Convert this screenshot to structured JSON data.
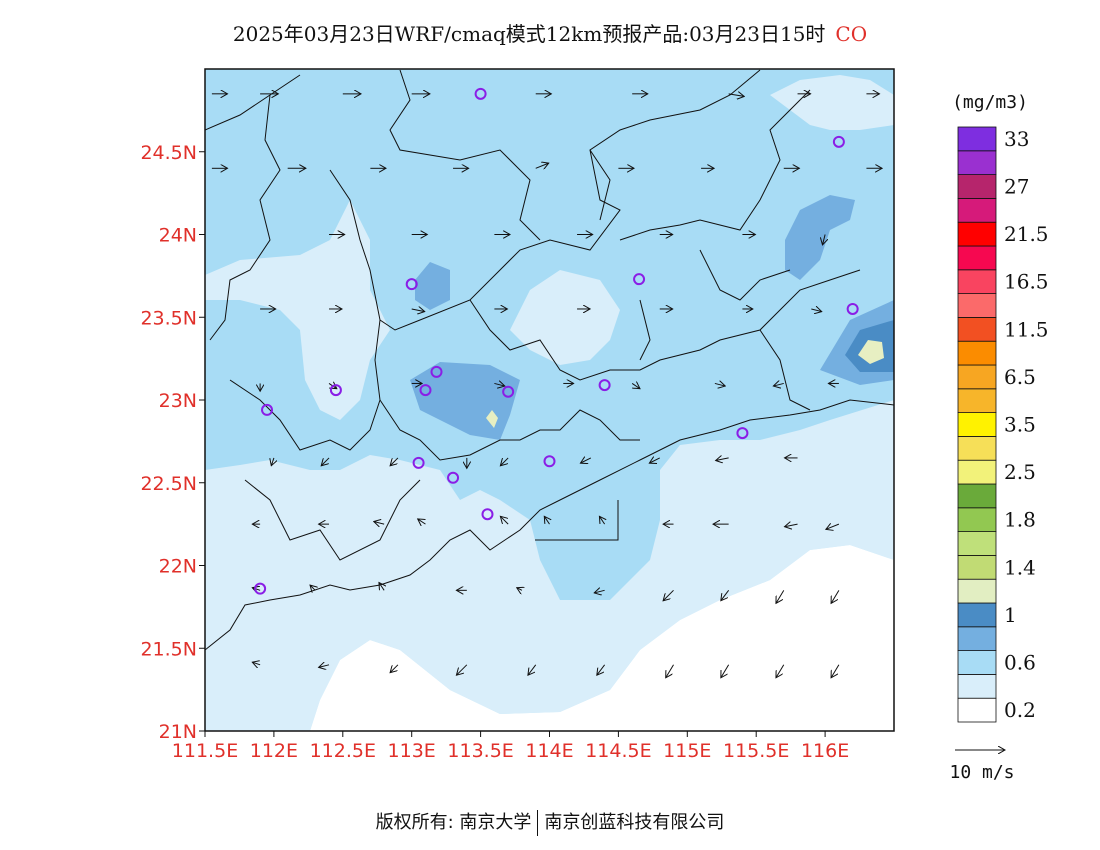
{
  "title": {
    "main": "2025年03月23日WRF/cmaq模式12km预报产品:03月23日15时",
    "species": "CO"
  },
  "map": {
    "lon_min": 111.5,
    "lon_max": 116.5,
    "lat_min": 21.0,
    "lat_max": 25.0,
    "x_ticks": [
      "111.5E",
      "112E",
      "112.5E",
      "113E",
      "113.5E",
      "114E",
      "114.5E",
      "115E",
      "115.5E",
      "116E"
    ],
    "x_tick_values": [
      111.5,
      112.0,
      112.5,
      113.0,
      113.5,
      114.0,
      114.5,
      115.0,
      115.5,
      116.0
    ],
    "y_ticks": [
      "21N",
      "21.5N",
      "22N",
      "22.5N",
      "23N",
      "23.5N",
      "24N",
      "24.5N"
    ],
    "y_tick_values": [
      21.0,
      21.5,
      22.0,
      22.5,
      23.0,
      23.5,
      24.0,
      24.5
    ],
    "fill_colors": {
      "level_0_2": "#d9eefa",
      "level_0_6": "#a8dcf5",
      "level_0_8": "#74afe0",
      "level_1": "#4a8cc5",
      "level_1_4": "#e7efc2"
    },
    "monitoring_sites": [
      {
        "lon": 113.5,
        "lat": 24.85
      },
      {
        "lon": 116.1,
        "lat": 24.56
      },
      {
        "lon": 113.0,
        "lat": 23.7
      },
      {
        "lon": 114.65,
        "lat": 23.73
      },
      {
        "lon": 116.2,
        "lat": 23.55
      },
      {
        "lon": 112.45,
        "lat": 23.06
      },
      {
        "lon": 113.1,
        "lat": 23.06
      },
      {
        "lon": 113.18,
        "lat": 23.17
      },
      {
        "lon": 113.7,
        "lat": 23.05
      },
      {
        "lon": 114.4,
        "lat": 23.09
      },
      {
        "lon": 111.95,
        "lat": 22.94
      },
      {
        "lon": 115.4,
        "lat": 22.8
      },
      {
        "lon": 113.05,
        "lat": 22.62
      },
      {
        "lon": 113.3,
        "lat": 22.53
      },
      {
        "lon": 114.0,
        "lat": 22.63
      },
      {
        "lon": 113.55,
        "lat": 22.31
      },
      {
        "lon": 111.9,
        "lat": 21.86
      }
    ],
    "wind_vectors": [
      {
        "lon": 111.55,
        "lat": 24.85,
        "u": 6,
        "v": 0
      },
      {
        "lon": 111.9,
        "lat": 24.85,
        "u": 7,
        "v": 0
      },
      {
        "lon": 112.5,
        "lat": 24.85,
        "u": 7,
        "v": 0
      },
      {
        "lon": 113.0,
        "lat": 24.85,
        "u": 7,
        "v": 0
      },
      {
        "lon": 113.9,
        "lat": 24.85,
        "u": 6,
        "v": 0
      },
      {
        "lon": 114.6,
        "lat": 24.85,
        "u": 6,
        "v": 0
      },
      {
        "lon": 115.3,
        "lat": 24.85,
        "u": 6,
        "v": -1
      },
      {
        "lon": 115.8,
        "lat": 24.85,
        "u": 5,
        "v": 0
      },
      {
        "lon": 116.3,
        "lat": 24.85,
        "u": 5,
        "v": 0
      },
      {
        "lon": 111.55,
        "lat": 24.4,
        "u": 6,
        "v": 0
      },
      {
        "lon": 112.1,
        "lat": 24.4,
        "u": 7,
        "v": 0
      },
      {
        "lon": 112.7,
        "lat": 24.4,
        "u": 6,
        "v": 0
      },
      {
        "lon": 113.3,
        "lat": 24.4,
        "u": 6,
        "v": 0
      },
      {
        "lon": 113.9,
        "lat": 24.4,
        "u": 5,
        "v": 2
      },
      {
        "lon": 114.5,
        "lat": 24.4,
        "u": 6,
        "v": 0
      },
      {
        "lon": 115.1,
        "lat": 24.4,
        "u": 5,
        "v": 0
      },
      {
        "lon": 115.7,
        "lat": 24.4,
        "u": 6,
        "v": 0
      },
      {
        "lon": 116.3,
        "lat": 24.4,
        "u": 6,
        "v": 0
      },
      {
        "lon": 112.4,
        "lat": 24.0,
        "u": 6,
        "v": 0
      },
      {
        "lon": 113.0,
        "lat": 24.0,
        "u": 6,
        "v": 0
      },
      {
        "lon": 113.6,
        "lat": 24.0,
        "u": 6,
        "v": 0
      },
      {
        "lon": 114.2,
        "lat": 24.0,
        "u": 6,
        "v": 0
      },
      {
        "lon": 114.8,
        "lat": 24.0,
        "u": 5,
        "v": 0
      },
      {
        "lon": 115.4,
        "lat": 24.0,
        "u": 5,
        "v": 0
      },
      {
        "lon": 116.0,
        "lat": 24.0,
        "u": -1,
        "v": -4
      },
      {
        "lon": 111.9,
        "lat": 23.55,
        "u": 6,
        "v": 0
      },
      {
        "lon": 112.4,
        "lat": 23.55,
        "u": 5,
        "v": 0
      },
      {
        "lon": 113.0,
        "lat": 23.55,
        "u": 5,
        "v": -1
      },
      {
        "lon": 113.6,
        "lat": 23.55,
        "u": 5,
        "v": 0
      },
      {
        "lon": 114.2,
        "lat": 23.55,
        "u": 5,
        "v": 0
      },
      {
        "lon": 114.8,
        "lat": 23.55,
        "u": 5,
        "v": 0
      },
      {
        "lon": 115.4,
        "lat": 23.55,
        "u": 4,
        "v": 0
      },
      {
        "lon": 115.9,
        "lat": 23.55,
        "u": 4,
        "v": -1
      },
      {
        "lon": 111.9,
        "lat": 23.1,
        "u": 0,
        "v": -3
      },
      {
        "lon": 112.4,
        "lat": 23.1,
        "u": 3,
        "v": -2
      },
      {
        "lon": 113.0,
        "lat": 23.1,
        "u": 4,
        "v": 0
      },
      {
        "lon": 113.6,
        "lat": 23.1,
        "u": 4,
        "v": -1
      },
      {
        "lon": 114.1,
        "lat": 23.1,
        "u": 4,
        "v": 0
      },
      {
        "lon": 114.6,
        "lat": 23.1,
        "u": 3,
        "v": -2
      },
      {
        "lon": 115.2,
        "lat": 23.1,
        "u": 4,
        "v": -1
      },
      {
        "lon": 115.7,
        "lat": 23.1,
        "u": -4,
        "v": -1
      },
      {
        "lon": 116.1,
        "lat": 23.1,
        "u": -4,
        "v": 0
      },
      {
        "lon": 112.0,
        "lat": 22.65,
        "u": -1,
        "v": -3
      },
      {
        "lon": 112.4,
        "lat": 22.65,
        "u": -3,
        "v": -3
      },
      {
        "lon": 112.9,
        "lat": 22.65,
        "u": -3,
        "v": -3
      },
      {
        "lon": 113.4,
        "lat": 22.65,
        "u": 0,
        "v": -4
      },
      {
        "lon": 113.7,
        "lat": 22.65,
        "u": -3,
        "v": -3
      },
      {
        "lon": 114.3,
        "lat": 22.65,
        "u": -4,
        "v": -2
      },
      {
        "lon": 114.8,
        "lat": 22.65,
        "u": -4,
        "v": -2
      },
      {
        "lon": 115.3,
        "lat": 22.65,
        "u": -5,
        "v": -1
      },
      {
        "lon": 115.8,
        "lat": 22.65,
        "u": -5,
        "v": 0
      },
      {
        "lon": 111.9,
        "lat": 22.25,
        "u": -3,
        "v": 0
      },
      {
        "lon": 112.4,
        "lat": 22.25,
        "u": -4,
        "v": 0
      },
      {
        "lon": 112.8,
        "lat": 22.25,
        "u": -4,
        "v": 1
      },
      {
        "lon": 113.1,
        "lat": 22.25,
        "u": -3,
        "v": 2
      },
      {
        "lon": 113.7,
        "lat": 22.25,
        "u": -3,
        "v": 3
      },
      {
        "lon": 114.0,
        "lat": 22.25,
        "u": -2,
        "v": 3
      },
      {
        "lon": 114.4,
        "lat": 22.25,
        "u": -2,
        "v": 3
      },
      {
        "lon": 114.9,
        "lat": 22.25,
        "u": -4,
        "v": 0
      },
      {
        "lon": 115.3,
        "lat": 22.25,
        "u": -6,
        "v": 0
      },
      {
        "lon": 115.8,
        "lat": 22.25,
        "u": -5,
        "v": -1
      },
      {
        "lon": 116.1,
        "lat": 22.25,
        "u": -5,
        "v": -2
      },
      {
        "lon": 111.9,
        "lat": 21.85,
        "u": -3,
        "v": 1
      },
      {
        "lon": 112.3,
        "lat": 21.85,
        "u": -2,
        "v": 2
      },
      {
        "lon": 112.8,
        "lat": 21.85,
        "u": -2,
        "v": 3
      },
      {
        "lon": 113.4,
        "lat": 21.85,
        "u": -4,
        "v": 0
      },
      {
        "lon": 113.8,
        "lat": 21.85,
        "u": -2,
        "v": 1
      },
      {
        "lon": 114.4,
        "lat": 21.85,
        "u": -4,
        "v": -1
      },
      {
        "lon": 114.9,
        "lat": 21.85,
        "u": -4,
        "v": -4
      },
      {
        "lon": 115.3,
        "lat": 21.85,
        "u": -3,
        "v": -4
      },
      {
        "lon": 115.7,
        "lat": 21.85,
        "u": -3,
        "v": -5
      },
      {
        "lon": 116.1,
        "lat": 21.85,
        "u": -3,
        "v": -5
      },
      {
        "lon": 111.9,
        "lat": 21.4,
        "u": -3,
        "v": 1
      },
      {
        "lon": 112.4,
        "lat": 21.4,
        "u": -4,
        "v": -1
      },
      {
        "lon": 112.9,
        "lat": 21.4,
        "u": -3,
        "v": -3
      },
      {
        "lon": 113.4,
        "lat": 21.4,
        "u": -4,
        "v": -4
      },
      {
        "lon": 113.9,
        "lat": 21.4,
        "u": -3,
        "v": -4
      },
      {
        "lon": 114.4,
        "lat": 21.4,
        "u": -3,
        "v": -4
      },
      {
        "lon": 114.9,
        "lat": 21.4,
        "u": -3,
        "v": -5
      },
      {
        "lon": 115.3,
        "lat": 21.4,
        "u": -3,
        "v": -5
      },
      {
        "lon": 115.7,
        "lat": 21.4,
        "u": -3,
        "v": -5
      },
      {
        "lon": 116.1,
        "lat": 21.4,
        "u": -3,
        "v": -5
      }
    ]
  },
  "legend": {
    "unit": "(mg/m3)",
    "colors": [
      "#ffffff",
      "#d9eefa",
      "#a8dcf5",
      "#74afe0",
      "#4a8cc5",
      "#e2eec2",
      "#c1db74",
      "#bfe07a",
      "#92c851",
      "#6aaa3a",
      "#f2f27a",
      "#f6df58",
      "#fff200",
      "#f7b52a",
      "#f7a622",
      "#fb8c00",
      "#f25022",
      "#fb6a6a",
      "#f94460",
      "#f60850",
      "#ff0000",
      "#d61a7a",
      "#b6256c",
      "#9a30d0",
      "#7e2ee0"
    ],
    "labels": [
      "0.2",
      "0.6",
      "1",
      "1.4",
      "1.8",
      "2.5",
      "3.5",
      "6.5",
      "11.5",
      "16.5",
      "21.5",
      "27",
      "33"
    ],
    "wind_scale_label": "10 m/s"
  },
  "footer": {
    "copyright": "版权所有: 南京大学",
    "company": "南京创蓝科技有限公司"
  }
}
